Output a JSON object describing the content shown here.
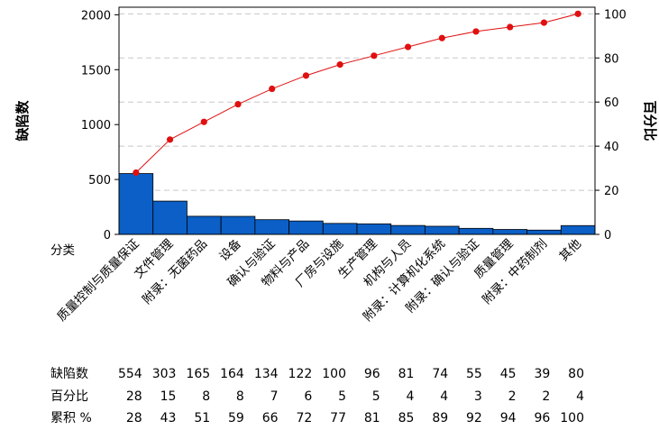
{
  "chart_data": {
    "type": "bar",
    "subtype": "pareto",
    "title": "",
    "xlabel": "分类",
    "ylabel": "缺陷数",
    "y2label": "百分比",
    "ylim": [
      0,
      2069
    ],
    "y2lim": [
      0,
      103
    ],
    "yticks": [
      "0",
      "500",
      "1000",
      "1500",
      "2000"
    ],
    "y2ticks": [
      "0",
      "20",
      "40",
      "60",
      "80",
      "100"
    ],
    "grid": true,
    "bar_color": "#0b5fc6",
    "line_color": "#e01010",
    "categories": [
      "质量控制与质量保证",
      "文件管理",
      "附录：无菌药品",
      "设备",
      "确认与验证",
      "物料与产品",
      "厂房与设施",
      "生产管理",
      "机构与人员",
      "附录：计算机化系统",
      "附录：确认与验证",
      "质量管理",
      "附录：中药制剂",
      "其他"
    ],
    "series": [
      {
        "name": "缺陷数",
        "type": "bar",
        "values": [
          554,
          303,
          165,
          164,
          134,
          122,
          100,
          96,
          81,
          74,
          55,
          45,
          39,
          80
        ]
      },
      {
        "name": "累积 %",
        "type": "line",
        "axis": "right",
        "values": [
          28,
          43,
          51,
          59,
          66,
          72,
          77,
          81,
          85,
          89,
          92,
          94,
          96,
          100
        ]
      }
    ],
    "table": {
      "rows": [
        {
          "label": "缺陷数",
          "values": [
            "554",
            "303",
            "165",
            "164",
            "134",
            "122",
            "100",
            "96",
            "81",
            "74",
            "55",
            "45",
            "39",
            "80"
          ]
        },
        {
          "label": "百分比",
          "values": [
            "28",
            "15",
            "8",
            "8",
            "7",
            "6",
            "5",
            "5",
            "4",
            "4",
            "3",
            "2",
            "2",
            "4"
          ]
        },
        {
          "label": "累积 %",
          "values": [
            "28",
            "43",
            "51",
            "59",
            "66",
            "72",
            "77",
            "81",
            "85",
            "89",
            "92",
            "94",
            "96",
            "100"
          ]
        }
      ]
    }
  }
}
